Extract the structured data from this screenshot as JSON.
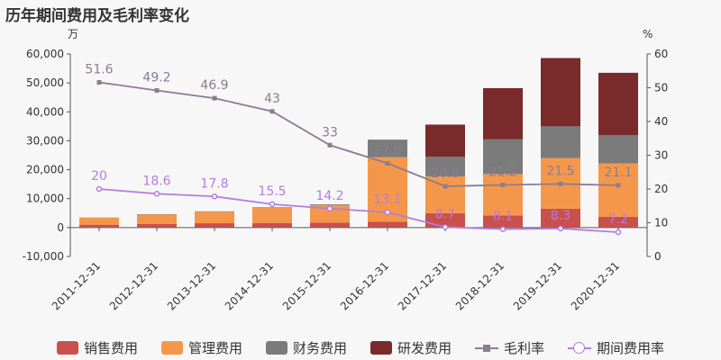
{
  "title": "历年期间费用及毛利率变化",
  "chart_data": {
    "type": "bar",
    "stacked": true,
    "categories": [
      "2011-12-31",
      "2012-12-31",
      "2013-12-31",
      "2014-12-31",
      "2015-12-31",
      "2016-12-31",
      "2017-12-31",
      "2018-12-31",
      "2019-12-31",
      "2020-12-31"
    ],
    "left_axis": {
      "unit_label": "万",
      "ylim": [
        -10000,
        60000
      ],
      "ticks": [
        -10000,
        0,
        10000,
        20000,
        30000,
        40000,
        50000,
        60000
      ],
      "tick_labels": [
        "-10,000",
        "0",
        "10,000",
        "20,000",
        "30,000",
        "40,000",
        "50,000",
        "60,000"
      ]
    },
    "right_axis": {
      "unit_label": "%",
      "ylim": [
        0,
        60
      ],
      "ticks": [
        0,
        10,
        20,
        30,
        40,
        50,
        60
      ],
      "tick_labels": [
        "0",
        "10",
        "20",
        "30",
        "40",
        "50",
        "60"
      ]
    },
    "series": [
      {
        "name": "销售费用",
        "kind": "bar",
        "color": "#c9504d",
        "values": [
          1000,
          1200,
          1500,
          1600,
          1700,
          2000,
          5000,
          4200,
          6500,
          3700
        ]
      },
      {
        "name": "管理费用",
        "kind": "bar",
        "color": "#f5974a",
        "values": [
          2500,
          3300,
          4000,
          5200,
          6000,
          22300,
          12700,
          14300,
          17500,
          18500
        ]
      },
      {
        "name": "财务费用",
        "kind": "bar",
        "color": "#7b7b7b",
        "values": [
          0,
          100,
          100,
          200,
          300,
          6100,
          6800,
          12000,
          11000,
          9700
        ]
      },
      {
        "name": "研发费用",
        "kind": "bar",
        "color": "#7a2a2a",
        "values": [
          0,
          0,
          0,
          0,
          0,
          0,
          11100,
          17700,
          23600,
          21600
        ]
      },
      {
        "name": "毛利率",
        "kind": "line",
        "axis": "right",
        "color": "#8a7d92",
        "marker": "square",
        "values": [
          51.6,
          49.2,
          46.9,
          43,
          33,
          27.6,
          20.8,
          21.2,
          21.5,
          21.1
        ],
        "labels": [
          "51.6",
          "49.2",
          "46.9",
          "43",
          "33",
          "27.6",
          "20.8",
          "21.2",
          "21.5",
          "21.1"
        ]
      },
      {
        "name": "期间费用率",
        "kind": "line",
        "axis": "right",
        "color": "#b57be0",
        "marker": "circle",
        "values": [
          20,
          18.6,
          17.8,
          15.5,
          14.2,
          13.1,
          8.7,
          8.1,
          8.3,
          7.2
        ],
        "labels": [
          "20",
          "18.6",
          "17.8",
          "15.5",
          "14.2",
          "13.1",
          "8.7",
          "8.1",
          "8.3",
          "7.2"
        ]
      }
    ],
    "legend_position": "bottom"
  }
}
